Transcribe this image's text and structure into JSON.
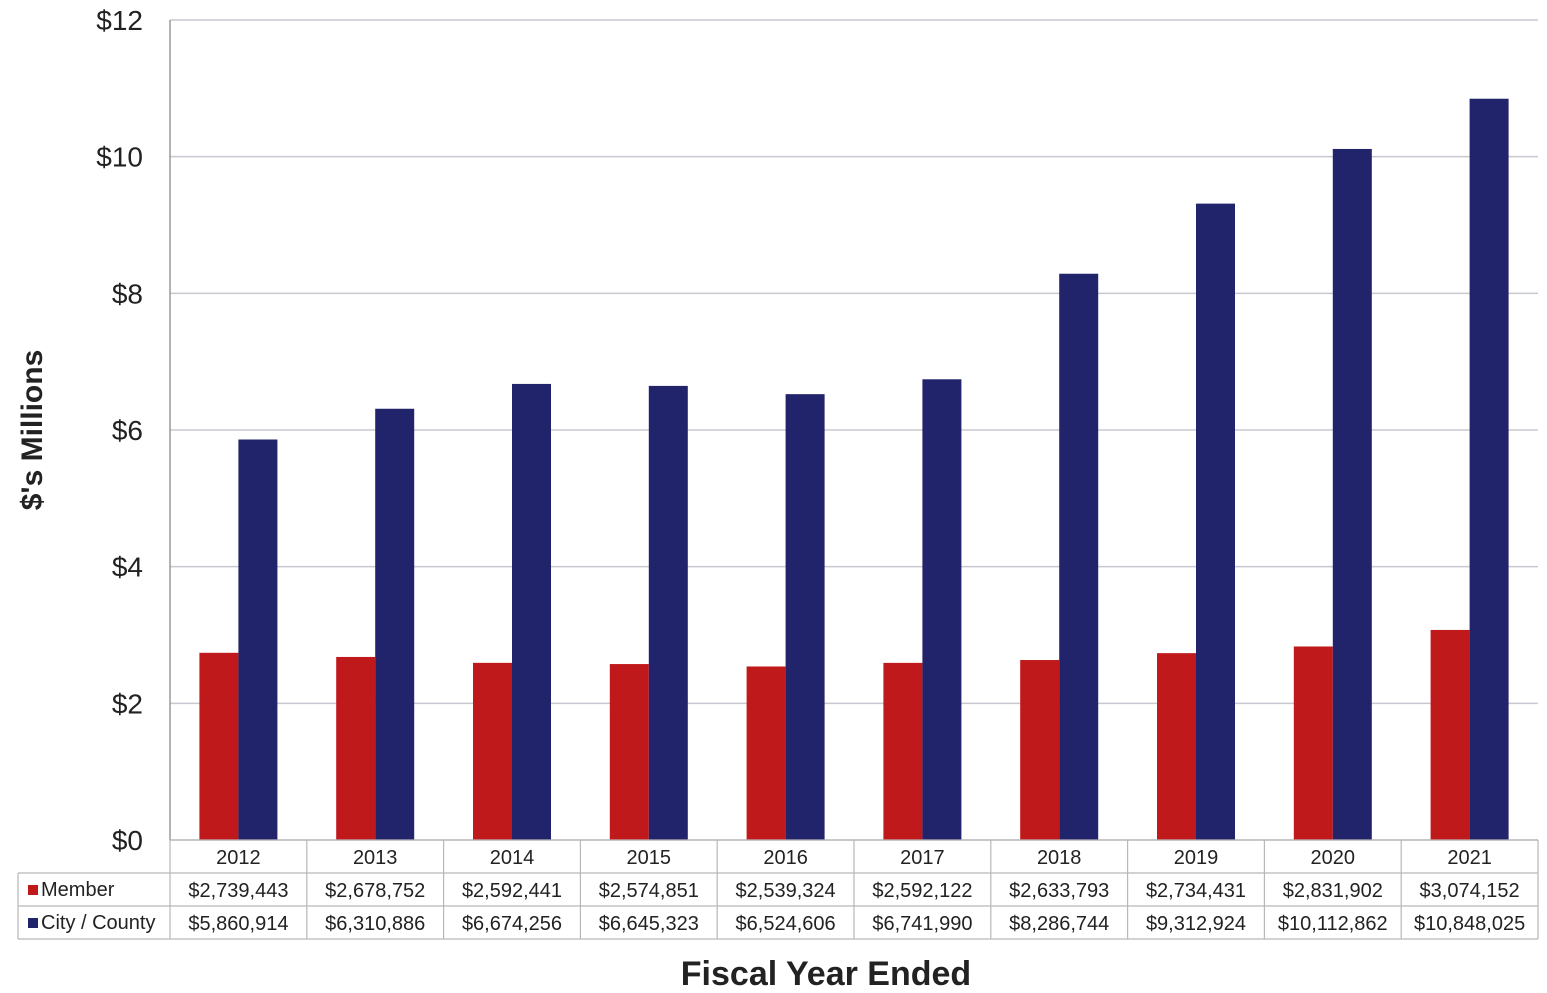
{
  "chart_data": {
    "type": "bar",
    "title": "",
    "xlabel": "Fiscal Year Ended",
    "ylabel": "$'s Millions",
    "ylim": [
      0,
      12
    ],
    "yticks": [
      0,
      2,
      4,
      6,
      8,
      10,
      12
    ],
    "ytick_labels": [
      "$0",
      "$2",
      "$4",
      "$6",
      "$8",
      "$10",
      "$12"
    ],
    "grid": true,
    "legend": "data-table-left",
    "categories": [
      "2012",
      "2013",
      "2014",
      "2015",
      "2016",
      "2017",
      "2018",
      "2019",
      "2020",
      "2021"
    ],
    "series": [
      {
        "name": "Member",
        "color": "#c0191c",
        "values": [
          2.739443,
          2.678752,
          2.592441,
          2.574851,
          2.539324,
          2.592122,
          2.633793,
          2.734431,
          2.831902,
          3.074152
        ],
        "labels": [
          "$2,739,443",
          "$2,678,752",
          "$2,592,441",
          "$2,574,851",
          "$2,539,324",
          "$2,592,122",
          "$2,633,793",
          "$2,734,431",
          "$2,831,902",
          "$3,074,152"
        ]
      },
      {
        "name": "City / County",
        "color": "#22246b",
        "values": [
          5.860914,
          6.310886,
          6.674256,
          6.645323,
          6.524606,
          6.74199,
          8.286744,
          9.312924,
          10.112862,
          10.848025
        ],
        "labels": [
          "$5,860,914",
          "$6,310,886",
          "$6,674,256",
          "$6,645,323",
          "$6,524,606",
          "$6,741,990",
          "$8,286,744",
          "$9,312,924",
          "$10,112,862",
          "$10,848,025"
        ]
      }
    ]
  }
}
